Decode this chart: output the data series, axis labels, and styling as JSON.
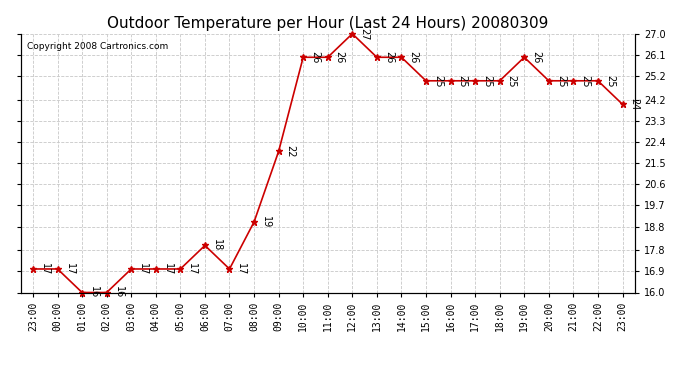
{
  "title": "Outdoor Temperature per Hour (Last 24 Hours) 20080309",
  "copyright": "Copyright 2008 Cartronics.com",
  "x_labels": [
    "23:00",
    "00:00",
    "01:00",
    "02:00",
    "03:00",
    "04:00",
    "05:00",
    "06:00",
    "07:00",
    "08:00",
    "09:00",
    "10:00",
    "11:00",
    "12:00",
    "13:00",
    "14:00",
    "15:00",
    "16:00",
    "17:00",
    "18:00",
    "19:00",
    "20:00",
    "21:00",
    "22:00",
    "23:00"
  ],
  "y_values": [
    17,
    17,
    16,
    16,
    17,
    17,
    17,
    18,
    17,
    19,
    22,
    26,
    26,
    27,
    26,
    26,
    25,
    25,
    25,
    25,
    26,
    25,
    25,
    25,
    24
  ],
  "y_ticks": [
    16.0,
    16.9,
    17.8,
    18.8,
    19.7,
    20.6,
    21.5,
    22.4,
    23.3,
    24.2,
    25.2,
    26.1,
    27.0
  ],
  "y_min": 16.0,
  "y_max": 27.0,
  "line_color": "#cc0000",
  "marker_color": "#cc0000",
  "background_color": "#ffffff",
  "grid_color": "#c8c8c8",
  "title_fontsize": 11,
  "copyright_fontsize": 6.5,
  "label_fontsize": 7,
  "tick_fontsize": 7
}
